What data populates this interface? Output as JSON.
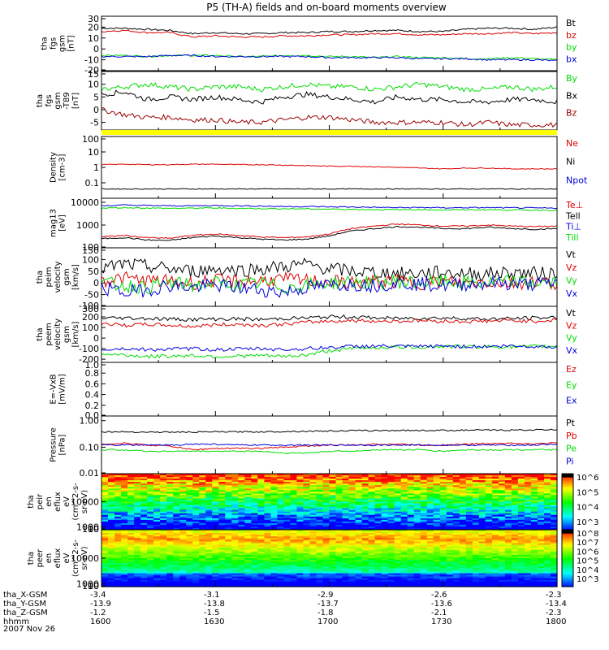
{
  "title": "P5 (TH-A) fields and on-board moments overview",
  "colors": {
    "black": "#000000",
    "red": "#dd0000",
    "green": "#00dd00",
    "blue": "#0000dd",
    "darkred": "#990000",
    "yellow": "#ffff00"
  },
  "ephemeris": {
    "rows": [
      {
        "label": "tha_X-GSM",
        "values": [
          "-3.4",
          "-3.1",
          "-2.9",
          "-2.6",
          "-2.3"
        ]
      },
      {
        "label": "tha_Y-GSM",
        "values": [
          "-13.9",
          "-13.8",
          "-13.7",
          "-13.6",
          "-13.4"
        ]
      },
      {
        "label": "tha_Z-GSM",
        "values": [
          "-1.2",
          "-1.5",
          "-1.8",
          "-2.1",
          "-2.3"
        ]
      },
      {
        "label": "hhmm",
        "values": [
          "1600",
          "1630",
          "1700",
          "1730",
          "1800"
        ]
      }
    ],
    "date": "2007 Nov 26"
  },
  "chart_data": [
    {
      "type": "line",
      "ylabel": [
        "tha",
        "fgs",
        "gsm",
        "[nT]"
      ],
      "ylim": [
        -20,
        30
      ],
      "yticks": [
        "30",
        "20",
        "10",
        "0",
        "-10",
        "-20"
      ],
      "xrange": [
        "1600",
        "1800"
      ],
      "series": [
        {
          "name": "Bt",
          "color": "black",
          "values": [
            19,
            19,
            18,
            17,
            14,
            15,
            14,
            14,
            15,
            15,
            16,
            16,
            17,
            17,
            16,
            16,
            18,
            19,
            19,
            18,
            20
          ]
        },
        {
          "name": "bz",
          "color": "red",
          "values": [
            16,
            17,
            15,
            15,
            11,
            12,
            11,
            11,
            12,
            12,
            13,
            13,
            14,
            14,
            13,
            13,
            14,
            14,
            15,
            14,
            15
          ]
        },
        {
          "name": "by",
          "color": "green",
          "values": [
            -6,
            -6,
            -7,
            -6,
            -6,
            -6,
            -7,
            -7,
            -6,
            -6,
            -7,
            -7,
            -8,
            -7,
            -8,
            -8,
            -9,
            -9,
            -8,
            -9,
            -10
          ]
        },
        {
          "name": "bx",
          "color": "blue",
          "values": [
            -7,
            -7,
            -7,
            -6,
            -6,
            -7,
            -7,
            -7,
            -7,
            -7,
            -8,
            -8,
            -8,
            -8,
            -9,
            -9,
            -9,
            -10,
            -10,
            -10,
            -11
          ]
        }
      ]
    },
    {
      "type": "line",
      "ylabel": [
        "tha",
        "fgs",
        "gsm",
        "-T89",
        "[nT]"
      ],
      "ylim": [
        -8,
        15
      ],
      "yticks": [
        "15",
        "10",
        "5",
        "0",
        "-5"
      ],
      "series": [
        {
          "name": "By",
          "color": "green",
          "values": [
            8,
            9,
            10,
            9,
            8,
            9,
            9,
            8,
            9,
            10,
            9,
            9,
            8,
            9,
            10,
            9,
            8,
            8,
            9,
            8,
            9
          ]
        },
        {
          "name": "Bx",
          "color": "black",
          "values": [
            6,
            7,
            4,
            5,
            4,
            5,
            4,
            3,
            5,
            6,
            5,
            4,
            3,
            5,
            4,
            4,
            3,
            3,
            4,
            4,
            3
          ]
        },
        {
          "name": "Bz",
          "color": "darkred",
          "values": [
            0,
            -2,
            -3,
            -3,
            -4,
            -4,
            -5,
            -5,
            -4,
            -3,
            -3,
            -4,
            -5,
            -5,
            -5,
            -5,
            -6,
            -5,
            -6,
            -6,
            -6
          ]
        }
      ]
    },
    {
      "type": "line",
      "ylabel": [
        "Density",
        "[cm-3]"
      ],
      "scale": "log",
      "ylim": [
        0.01,
        100
      ],
      "yticks": [
        "100",
        "10",
        "1",
        "0.1"
      ],
      "series": [
        {
          "name": "Ne",
          "color": "red",
          "values": [
            1.5,
            1.6,
            1.5,
            1.5,
            1.6,
            1.6,
            1.5,
            1.5,
            1.4,
            1.3,
            1.2,
            1.2,
            1.1,
            1,
            0.9,
            0.8,
            0.9,
            0.9,
            0.8,
            0.8,
            0.8
          ]
        },
        {
          "name": "Ni",
          "color": "black",
          "values": [
            0.04,
            0.04,
            0.04,
            0.04,
            0.04,
            0.04,
            0.04,
            0.04,
            0.04,
            0.04,
            0.04,
            0.04,
            0.04,
            0.04,
            0.04,
            0.04,
            0.04,
            0.04,
            0.04,
            0.04,
            0.04
          ]
        },
        {
          "name": "Npot",
          "color": "blue",
          "values": []
        }
      ]
    },
    {
      "type": "line",
      "ylabel": [
        "mag13",
        "[eV]"
      ],
      "scale": "log",
      "ylim": [
        100,
        15000
      ],
      "yticks": [
        "10000",
        "1000",
        "100"
      ],
      "series": [
        {
          "name": "Te⊥",
          "color": "red",
          "values": [
            300,
            350,
            280,
            260,
            350,
            400,
            350,
            300,
            280,
            300,
            400,
            700,
            900,
            1100,
            1000,
            900,
            900,
            1000,
            900,
            850,
            900
          ]
        },
        {
          "name": "Tell",
          "color": "black",
          "values": [
            250,
            280,
            220,
            210,
            280,
            330,
            280,
            240,
            220,
            240,
            330,
            550,
            700,
            850,
            800,
            700,
            700,
            800,
            700,
            650,
            700
          ]
        },
        {
          "name": "Ti⊥",
          "color": "blue",
          "values": [
            7000,
            7500,
            7200,
            7000,
            7000,
            7200,
            7000,
            6800,
            6500,
            6500,
            6300,
            6200,
            6000,
            5800,
            5900,
            5700,
            5800,
            5800,
            5700,
            5600,
            5500
          ]
        },
        {
          "name": "Till",
          "color": "green",
          "values": [
            5500,
            5800,
            5600,
            5400,
            5500,
            5600,
            5400,
            5300,
            5200,
            5100,
            5000,
            4900,
            4800,
            4700,
            4800,
            4600,
            4700,
            4700,
            4600,
            4500,
            4500
          ]
        }
      ]
    },
    {
      "type": "line",
      "ylabel": [
        "tha",
        "peim",
        "velocity",
        "gsm",
        "[km/s]"
      ],
      "ylim": [
        -100,
        150
      ],
      "yticks": [
        "150",
        "100",
        "50",
        "0",
        "-50",
        "-100"
      ],
      "series": [
        {
          "name": "Vt",
          "color": "black",
          "values": [
            60,
            80,
            70,
            60,
            50,
            60,
            55,
            60,
            70,
            80,
            60,
            50,
            45,
            40,
            40,
            45,
            40,
            40,
            45,
            40,
            40
          ]
        },
        {
          "name": "Vz",
          "color": "red",
          "values": [
            10,
            20,
            10,
            5,
            0,
            10,
            5,
            10,
            15,
            10,
            5,
            0,
            5,
            5,
            0,
            5,
            0,
            5,
            0,
            5,
            0
          ]
        },
        {
          "name": "Vy",
          "color": "green",
          "values": [
            0,
            -10,
            -20,
            0,
            -10,
            0,
            -10,
            0,
            -20,
            -10,
            0,
            5,
            0,
            5,
            0,
            5,
            0,
            0,
            5,
            0,
            0
          ]
        },
        {
          "name": "Vx",
          "color": "blue",
          "values": [
            -20,
            -40,
            -30,
            -10,
            -20,
            -10,
            -20,
            -30,
            -40,
            -20,
            -10,
            -5,
            -10,
            0,
            -5,
            -10,
            -5,
            0,
            -5,
            -5,
            0
          ]
        }
      ]
    },
    {
      "type": "line",
      "ylabel": [
        "tha",
        "peem",
        "velocity",
        "gsm",
        "[km/s]"
      ],
      "ylim": [
        -230,
        300
      ],
      "yticks": [
        "300",
        "200",
        "100",
        "0",
        "-100",
        "-200"
      ],
      "series": [
        {
          "name": "Vt",
          "color": "black",
          "values": [
            190,
            190,
            185,
            180,
            175,
            180,
            180,
            175,
            185,
            190,
            200,
            200,
            190,
            185,
            190,
            190,
            185,
            180,
            185,
            190,
            195
          ]
        },
        {
          "name": "Vz",
          "color": "red",
          "values": [
            140,
            120,
            130,
            120,
            110,
            125,
            130,
            120,
            130,
            150,
            160,
            165,
            160,
            160,
            165,
            160,
            155,
            160,
            165,
            160,
            170
          ]
        },
        {
          "name": "Vy",
          "color": "green",
          "values": [
            -150,
            -160,
            -175,
            -170,
            -165,
            -175,
            -170,
            -165,
            -175,
            -160,
            -120,
            -100,
            -90,
            -85,
            -85,
            -80,
            -80,
            -80,
            -85,
            -80,
            -80
          ]
        },
        {
          "name": "Vx",
          "color": "blue",
          "values": [
            -110,
            -100,
            -110,
            -105,
            -100,
            -110,
            -105,
            -100,
            -110,
            -100,
            -90,
            -80,
            -75,
            -80,
            -80,
            -75,
            -80,
            -80,
            -75,
            -80,
            -80
          ]
        }
      ]
    },
    {
      "type": "line",
      "ylabel": [
        "E=-VxB",
        "[mV/m]"
      ],
      "ylim": [
        0,
        1
      ],
      "yticks": [
        "1.0",
        "0.8",
        "0.6",
        "0.4",
        "0.2",
        "0.0"
      ],
      "series": [
        {
          "name": "Ez",
          "color": "red",
          "values": []
        },
        {
          "name": "Ey",
          "color": "green",
          "values": []
        },
        {
          "name": "Ex",
          "color": "blue",
          "values": []
        }
      ]
    },
    {
      "type": "line",
      "ylabel": [
        "Pressure",
        "[nPa]"
      ],
      "scale": "log",
      "ylim": [
        0.01,
        1.5
      ],
      "yticks": [
        "1.00",
        "0.10",
        "0.01"
      ],
      "series": [
        {
          "name": "Pt",
          "color": "black",
          "values": [
            0.38,
            0.38,
            0.37,
            0.37,
            0.37,
            0.38,
            0.38,
            0.38,
            0.39,
            0.4,
            0.41,
            0.42,
            0.42,
            0.43,
            0.43,
            0.43,
            0.44,
            0.44,
            0.44,
            0.45,
            0.46
          ]
        },
        {
          "name": "Pb",
          "color": "red",
          "values": [
            0.13,
            0.14,
            0.12,
            0.11,
            0.08,
            0.09,
            0.09,
            0.09,
            0.1,
            0.11,
            0.12,
            0.12,
            0.13,
            0.13,
            0.12,
            0.12,
            0.13,
            0.14,
            0.14,
            0.13,
            0.15
          ]
        },
        {
          "name": "Pe",
          "color": "green",
          "values": [
            0.08,
            0.08,
            0.07,
            0.07,
            0.07,
            0.07,
            0.07,
            0.07,
            0.06,
            0.06,
            0.07,
            0.07,
            0.08,
            0.08,
            0.08,
            0.07,
            0.08,
            0.08,
            0.08,
            0.08,
            0.08
          ]
        },
        {
          "name": "Pi",
          "color": "blue",
          "values": [
            0.12,
            0.12,
            0.12,
            0.12,
            0.13,
            0.13,
            0.12,
            0.12,
            0.12,
            0.12,
            0.12,
            0.12,
            0.12,
            0.12,
            0.12,
            0.12,
            0.12,
            0.12,
            0.12,
            0.12,
            0.13
          ]
        }
      ]
    },
    {
      "type": "heatmap",
      "ylabel": [
        "tha",
        "peir",
        "en",
        "eflux",
        "eV",
        "(cm^2-s-",
        "sr-eV)"
      ],
      "ylim": [
        10,
        20000
      ],
      "yticks": [
        "10000",
        "1000",
        "100",
        "10"
      ],
      "colorbar": [
        "10^6",
        "10^5",
        "10^4",
        "10^3"
      ]
    },
    {
      "type": "heatmap",
      "ylabel": [
        "tha",
        "peer",
        "en",
        "eflux",
        "eV",
        "(cm^2-s-",
        "sr-eV)"
      ],
      "ylim": [
        10,
        20000
      ],
      "yticks": [
        "10000",
        "1000",
        "100",
        "10"
      ],
      "colorbar": [
        "10^8",
        "10^7",
        "10^6",
        "10^5",
        "10^4",
        "10^3"
      ]
    }
  ]
}
